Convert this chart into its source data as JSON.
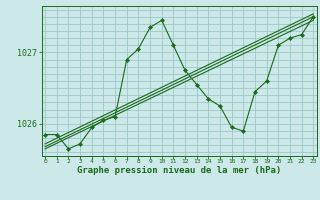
{
  "bg_color": "#cce8e8",
  "grid_color": "#9ec8c8",
  "line_color": "#1a6b1a",
  "title": "Graphe pression niveau de la mer (hPa)",
  "xlabel_ticks": [
    0,
    1,
    2,
    3,
    4,
    5,
    6,
    7,
    8,
    9,
    10,
    11,
    12,
    13,
    14,
    15,
    16,
    17,
    18,
    19,
    20,
    21,
    22,
    23
  ],
  "yticks": [
    1026,
    1027
  ],
  "ylim": [
    1025.55,
    1027.65
  ],
  "xlim": [
    -0.3,
    23.3
  ],
  "main_x": [
    0,
    1,
    2,
    3,
    4,
    5,
    6,
    7,
    8,
    9,
    10,
    11,
    12,
    13,
    14,
    15,
    16,
    17,
    18,
    19,
    20,
    21,
    22,
    23
  ],
  "main_y": [
    1025.85,
    1025.85,
    1025.65,
    1025.72,
    1025.95,
    1026.05,
    1026.1,
    1026.9,
    1027.05,
    1027.35,
    1027.45,
    1027.1,
    1026.75,
    1026.55,
    1026.35,
    1026.25,
    1025.95,
    1025.9,
    1026.45,
    1026.6,
    1027.1,
    1027.2,
    1027.25,
    1027.5
  ],
  "trend1_x": [
    0,
    23
  ],
  "trend1_y": [
    1025.65,
    1027.45
  ],
  "trend2_x": [
    0,
    23
  ],
  "trend2_y": [
    1025.68,
    1027.5
  ],
  "trend3_x": [
    0,
    23
  ],
  "trend3_y": [
    1025.72,
    1027.54
  ]
}
